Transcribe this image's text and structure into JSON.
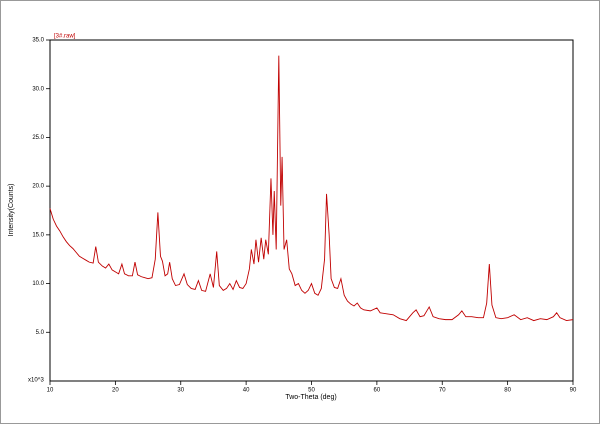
{
  "chart_data": {
    "type": "line",
    "legend_label": "[3#.raw]",
    "xlabel": "Two-Theta (deg)",
    "ylabel": "Intensity(Counts)",
    "y_unit_label": "x10^3",
    "xlim": [
      10,
      90
    ],
    "xticks": [
      10,
      20,
      30,
      40,
      50,
      60,
      70,
      80,
      90
    ],
    "ylim": [
      0,
      35
    ],
    "yticks": [
      {
        "value": 5,
        "label": "5.0"
      },
      {
        "value": 10,
        "label": "10.0"
      },
      {
        "value": 15,
        "label": "15.0"
      },
      {
        "value": 20,
        "label": "20.0"
      },
      {
        "value": 25,
        "label": "25.0"
      },
      {
        "value": 30,
        "label": "30.0"
      },
      {
        "value": 35,
        "label": "35.0"
      }
    ],
    "series": [
      {
        "color": "#c00000",
        "x": [
          10,
          10.5,
          11,
          11.5,
          12,
          12.5,
          13,
          13.5,
          14,
          14.5,
          15,
          15.5,
          16,
          16.6,
          17,
          17.4,
          18,
          18.5,
          19,
          19.5,
          20,
          20.5,
          21,
          21.4,
          22,
          22.6,
          23,
          23.4,
          24,
          24.5,
          25,
          25.6,
          26.1,
          26.5,
          26.9,
          27.2,
          27.6,
          28,
          28.3,
          28.7,
          29.2,
          29.8,
          30.5,
          31,
          31.6,
          32.2,
          32.7,
          33.2,
          33.8,
          34.5,
          35,
          35.5,
          35.9,
          36.5,
          37,
          37.5,
          38,
          38.5,
          39,
          39.5,
          40,
          40.5,
          40.8,
          41.2,
          41.5,
          41.9,
          42.3,
          42.7,
          43,
          43.4,
          43.8,
          44.1,
          44.3,
          44.6,
          45,
          45.3,
          45.5,
          45.8,
          46.2,
          46.6,
          47,
          47.5,
          48,
          48.5,
          49,
          49.5,
          50,
          50.5,
          51,
          51.5,
          52,
          52.3,
          52.7,
          53,
          53.5,
          54,
          54.5,
          55,
          55.5,
          56,
          56.5,
          57,
          57.5,
          58,
          59,
          60,
          60.5,
          61.5,
          62.5,
          63.5,
          64.5,
          65.5,
          66,
          66.6,
          67.2,
          68,
          68.6,
          69.5,
          70.5,
          71.5,
          72.5,
          73,
          73.6,
          74.5,
          75.5,
          76.3,
          76.8,
          77.2,
          77.6,
          78.2,
          79,
          80,
          81,
          82,
          83,
          84,
          85,
          86,
          87,
          87.5,
          88,
          89,
          90
        ],
        "values": [
          17.7,
          16.6,
          15.9,
          15.4,
          14.8,
          14.3,
          13.9,
          13.6,
          13.2,
          12.8,
          12.6,
          12.4,
          12.2,
          12.1,
          13.8,
          12.2,
          11.8,
          11.6,
          12.0,
          11.4,
          11.2,
          11.0,
          12.0,
          11.0,
          10.8,
          10.8,
          12.2,
          10.9,
          10.7,
          10.6,
          10.5,
          10.6,
          12.5,
          17.3,
          12.8,
          12.3,
          10.8,
          11.0,
          12.2,
          10.5,
          9.8,
          9.9,
          11.0,
          9.9,
          9.5,
          9.4,
          10.3,
          9.3,
          9.2,
          11.0,
          9.6,
          13.3,
          9.8,
          9.3,
          9.5,
          10.0,
          9.4,
          10.3,
          9.6,
          9.5,
          10.0,
          11.5,
          13.5,
          12.0,
          14.5,
          12.2,
          14.7,
          12.5,
          14.5,
          13.0,
          20.8,
          15.0,
          19.5,
          13.5,
          33.4,
          18,
          23,
          13.5,
          14.5,
          11.5,
          11.0,
          9.8,
          10.0,
          9.3,
          9.0,
          9.3,
          10.0,
          9.0,
          8.8,
          9.5,
          12.5,
          19.2,
          15.0,
          10.5,
          9.6,
          9.5,
          10.5,
          8.8,
          8.2,
          7.9,
          7.7,
          8.0,
          7.5,
          7.3,
          7.2,
          7.5,
          7.0,
          6.9,
          6.8,
          6.4,
          6.2,
          7.0,
          7.3,
          6.6,
          6.7,
          7.6,
          6.6,
          6.4,
          6.3,
          6.3,
          6.8,
          7.2,
          6.6,
          6.6,
          6.5,
          6.5,
          8.0,
          12.0,
          7.8,
          6.5,
          6.4,
          6.5,
          6.8,
          6.3,
          6.5,
          6.2,
          6.4,
          6.3,
          6.6,
          7.0,
          6.5,
          6.2,
          6.3
        ]
      }
    ]
  }
}
